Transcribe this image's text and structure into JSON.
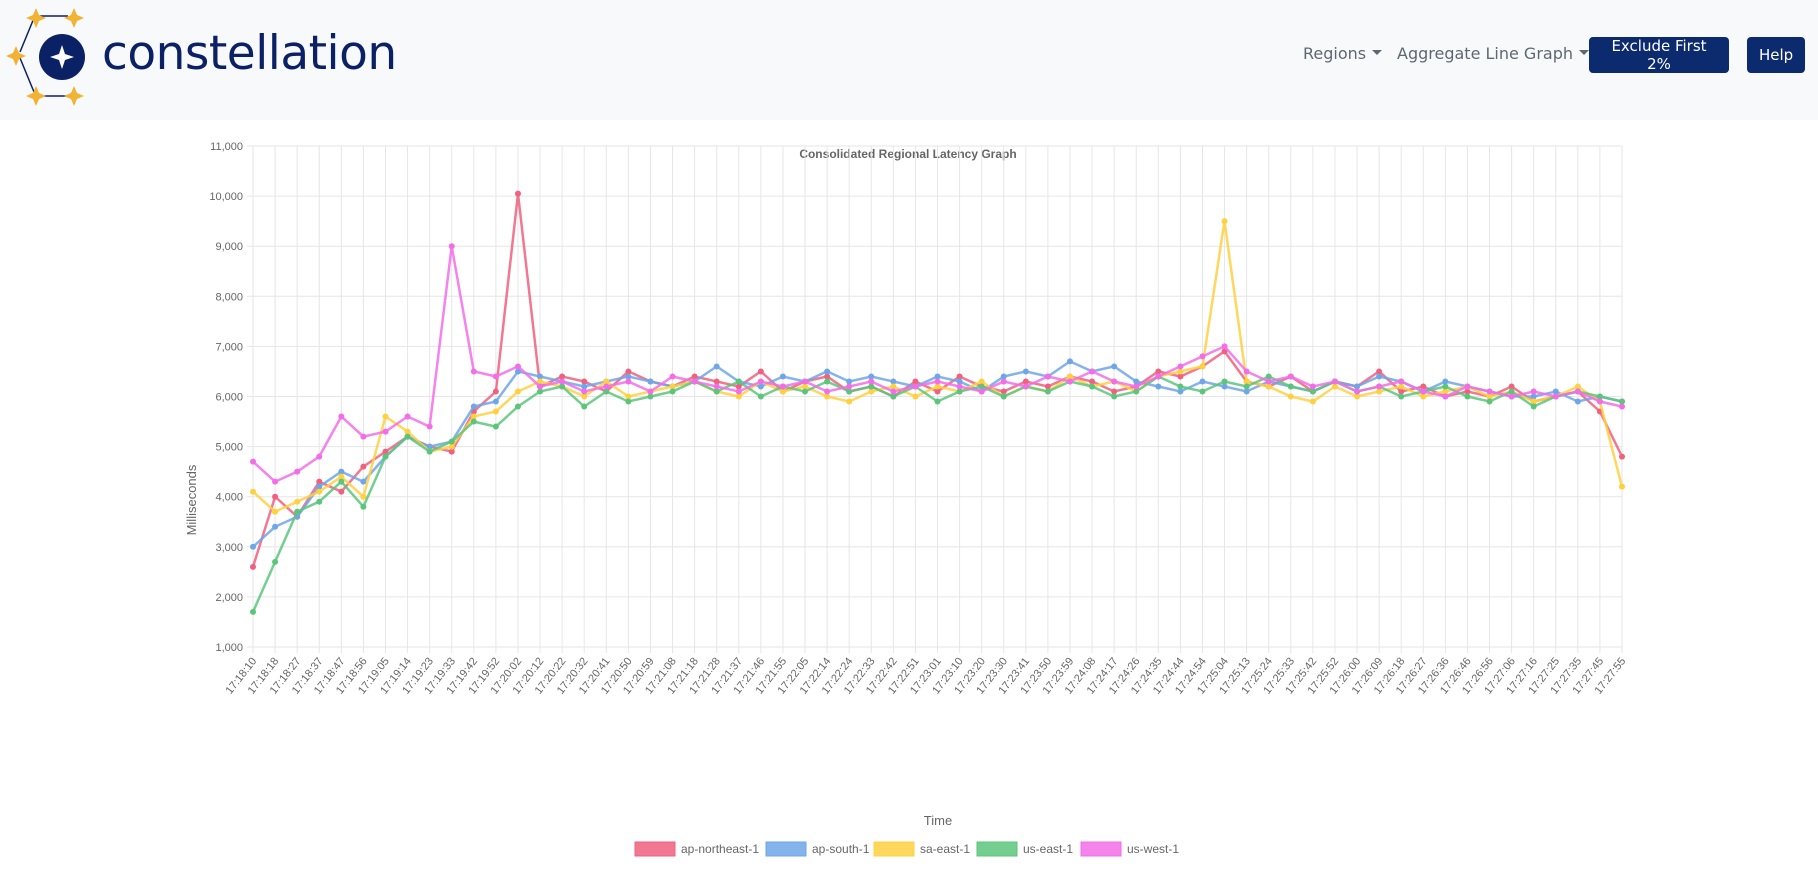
{
  "app": {
    "brand_name": "constellation",
    "brand_color": "#0b2166",
    "logo_icon": "constellation-logo-icon",
    "star_color": "#f2b233"
  },
  "nav": {
    "regions_label": "Regions",
    "view_label": "Aggregate Line Graph",
    "exclude_button_label": "Exclude First 2%",
    "help_button_label": "Help",
    "button_color": "#0c2a6e"
  },
  "chart_data": {
    "type": "line",
    "title": "Consolidated Regional Latency Graph",
    "xlabel": "Time",
    "ylabel": "Milliseconds",
    "ylim": [
      1000,
      11000
    ],
    "yticks": [
      "1,000",
      "2,000",
      "3,000",
      "4,000",
      "5,000",
      "6,000",
      "7,000",
      "8,000",
      "9,000",
      "10,000",
      "11,000"
    ],
    "xticks": [
      "17:18:10",
      "17:18:18",
      "17:18:27",
      "17:18:37",
      "17:18:47",
      "17:18:56",
      "17:19:05",
      "17:19:14",
      "17:19:23",
      "17:19:33",
      "17:19:42",
      "17:19:52",
      "17:20:02",
      "17:20:12",
      "17:20:22",
      "17:20:32",
      "17:20:41",
      "17:20:50",
      "17:20:59",
      "17:21:08",
      "17:21:18",
      "17:21:28",
      "17:21:37",
      "17:21:46",
      "17:21:55",
      "17:22:05",
      "17:22:14",
      "17:22:24",
      "17:22:33",
      "17:22:42",
      "17:22:51",
      "17:23:01",
      "17:23:10",
      "17:23:20",
      "17:23:30",
      "17:23:41",
      "17:23:50",
      "17:23:59",
      "17:24:08",
      "17:24:17",
      "17:24:26",
      "17:24:35",
      "17:24:44",
      "17:24:54",
      "17:25:04",
      "17:25:13",
      "17:25:24",
      "17:25:33",
      "17:25:42",
      "17:25:52",
      "17:26:00",
      "17:26:09",
      "17:26:18",
      "17:26:27",
      "17:26:36",
      "17:26:46",
      "17:26:56",
      "17:27:06",
      "17:27:16",
      "17:27:25",
      "17:27:35",
      "17:27:45",
      "17:27:55"
    ],
    "grid": true,
    "legend_placement": "bottom",
    "series": [
      {
        "name": "ap-northeast-1",
        "color": "#f0607f",
        "values": [
          2600,
          4000,
          3600,
          4300,
          4100,
          4600,
          4900,
          5200,
          5000,
          4900,
          5700,
          6100,
          10050,
          6200,
          6400,
          6300,
          6100,
          6500,
          6300,
          6200,
          6400,
          6300,
          6200,
          6500,
          6100,
          6300,
          6400,
          6100,
          6200,
          6000,
          6300,
          6100,
          6400,
          6200,
          6100,
          6300,
          6200,
          6400,
          6300,
          6100,
          6200,
          6500,
          6400,
          6600,
          6900,
          6300,
          6200,
          6400,
          6100,
          6300,
          6200,
          6500,
          6100,
          6200,
          6000,
          6100,
          6000,
          6200,
          5900,
          6000,
          6100,
          5700,
          4800
        ]
      },
      {
        "name": "ap-south-1",
        "color": "#6ea6e8",
        "values": [
          3000,
          3400,
          3600,
          4200,
          4500,
          4300,
          4800,
          5200,
          5000,
          5100,
          5800,
          5900,
          6500,
          6400,
          6300,
          6200,
          6300,
          6400,
          6300,
          6200,
          6300,
          6600,
          6300,
          6200,
          6400,
          6300,
          6500,
          6300,
          6400,
          6300,
          6200,
          6400,
          6300,
          6100,
          6400,
          6500,
          6400,
          6700,
          6500,
          6600,
          6300,
          6200,
          6100,
          6300,
          6200,
          6100,
          6300,
          6200,
          6100,
          6300,
          6200,
          6400,
          6300,
          6100,
          6300,
          6200,
          6100,
          6000,
          6000,
          6100,
          5900,
          6000,
          5900
        ]
      },
      {
        "name": "sa-east-1",
        "color": "#ffd040",
        "values": [
          4100,
          3700,
          3900,
          4100,
          4400,
          4000,
          5600,
          5300,
          4900,
          5000,
          5600,
          5700,
          6100,
          6300,
          6200,
          6000,
          6300,
          6000,
          6100,
          6200,
          6300,
          6100,
          6000,
          6300,
          6100,
          6200,
          6000,
          5900,
          6100,
          6200,
          6000,
          6200,
          6100,
          6300,
          6000,
          6200,
          6100,
          6400,
          6200,
          6300,
          6100,
          6400,
          6500,
          6600,
          9500,
          6300,
          6200,
          6000,
          5900,
          6200,
          6000,
          6100,
          6200,
          6000,
          6100,
          6200,
          6000,
          6100,
          5900,
          6000,
          6200,
          5900,
          4200
        ]
      },
      {
        "name": "us-east-1",
        "color": "#5cc57b",
        "values": [
          1700,
          2700,
          3700,
          3900,
          4300,
          3800,
          4800,
          5200,
          4900,
          5100,
          5500,
          5400,
          5800,
          6100,
          6200,
          5800,
          6100,
          5900,
          6000,
          6100,
          6300,
          6100,
          6300,
          6000,
          6200,
          6100,
          6300,
          6100,
          6200,
          6000,
          6200,
          5900,
          6100,
          6200,
          6000,
          6200,
          6100,
          6300,
          6200,
          6000,
          6100,
          6400,
          6200,
          6100,
          6300,
          6200,
          6400,
          6200,
          6100,
          6300,
          6100,
          6200,
          6000,
          6100,
          6200,
          6000,
          5900,
          6100,
          5800,
          6000,
          6100,
          6000,
          5900
        ]
      },
      {
        "name": "us-west-1",
        "color": "#f26de7",
        "values": [
          4700,
          4300,
          4500,
          4800,
          5600,
          5200,
          5300,
          5600,
          5400,
          9000,
          6500,
          6400,
          6600,
          6200,
          6300,
          6100,
          6200,
          6300,
          6100,
          6400,
          6300,
          6200,
          6100,
          6300,
          6200,
          6300,
          6100,
          6200,
          6300,
          6100,
          6200,
          6300,
          6200,
          6100,
          6300,
          6200,
          6400,
          6300,
          6500,
          6300,
          6200,
          6400,
          6600,
          6800,
          7000,
          6500,
          6300,
          6400,
          6200,
          6300,
          6100,
          6200,
          6300,
          6100,
          6000,
          6200,
          6100,
          6000,
          6100,
          6000,
          6100,
          5900,
          5800
        ]
      }
    ]
  }
}
